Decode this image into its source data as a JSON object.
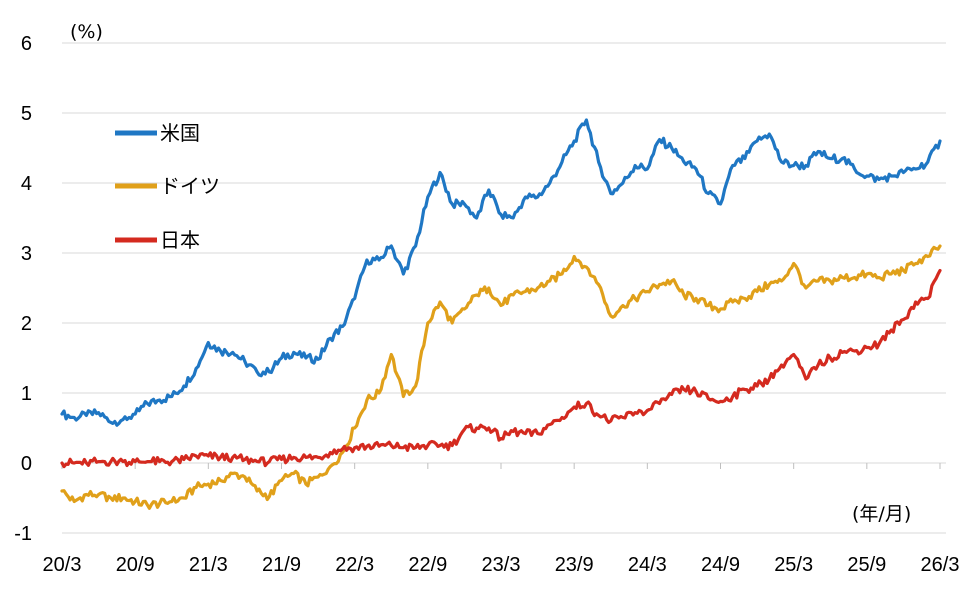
{
  "chart_data": {
    "type": "line",
    "ylabel": "(%)",
    "xlabel": "(年/月)",
    "ylim": [
      -1,
      6
    ],
    "y_ticks": [
      "6",
      "5",
      "4",
      "3",
      "2",
      "1",
      "0",
      "-1"
    ],
    "x_ticks": [
      "20/3",
      "20/9",
      "21/3",
      "21/9",
      "22/3",
      "22/9",
      "23/3",
      "23/9",
      "24/3",
      "24/9",
      "25/3",
      "25/9",
      "26/3"
    ],
    "grid": true,
    "legend_position": "upper-left",
    "series": [
      {
        "name": "米国",
        "color": "#1f77c4",
        "x": [
          "20/3",
          "20/4",
          "20/5",
          "20/6",
          "20/7",
          "20/8",
          "20/9",
          "20/10",
          "20/11",
          "20/12",
          "21/1",
          "21/2",
          "21/3",
          "21/4",
          "21/5",
          "21/6",
          "21/7",
          "21/8",
          "21/9",
          "21/10",
          "21/11",
          "21/12",
          "22/1",
          "22/2",
          "22/3",
          "22/4",
          "22/5",
          "22/6",
          "22/7",
          "22/8",
          "22/9",
          "22/10",
          "22/11",
          "22/12",
          "23/1",
          "23/2",
          "23/3",
          "23/4",
          "23/5",
          "23/6",
          "23/7",
          "23/8",
          "23/9",
          "23/10",
          "23/11",
          "23/12",
          "24/1",
          "24/2",
          "24/3",
          "24/4",
          "24/5",
          "24/6",
          "24/7",
          "24/8",
          "24/9",
          "24/10",
          "24/11",
          "24/12",
          "25/1",
          "25/2",
          "25/3",
          "25/4",
          "25/5",
          "25/6",
          "25/7",
          "25/8",
          "25/9",
          "25/10",
          "25/11",
          "25/12",
          "26/1",
          "26/2",
          "26/3"
        ],
        "values": [
          0.7,
          0.65,
          0.68,
          0.72,
          0.58,
          0.62,
          0.7,
          0.85,
          0.9,
          0.95,
          1.1,
          1.35,
          1.72,
          1.6,
          1.58,
          1.45,
          1.3,
          1.3,
          1.5,
          1.58,
          1.5,
          1.48,
          1.78,
          1.95,
          2.35,
          2.9,
          2.9,
          3.1,
          2.7,
          3.1,
          3.8,
          4.15,
          3.7,
          3.7,
          3.5,
          3.9,
          3.55,
          3.5,
          3.8,
          3.8,
          4.0,
          4.3,
          4.6,
          4.9,
          4.3,
          3.85,
          4.0,
          4.25,
          4.2,
          4.62,
          4.5,
          4.3,
          4.2,
          3.85,
          3.7,
          4.25,
          4.35,
          4.6,
          4.7,
          4.3,
          4.25,
          4.25,
          4.45,
          4.35,
          4.35,
          4.2,
          4.1,
          4.05,
          4.1,
          4.15,
          4.2,
          4.3,
          4.6
        ]
      },
      {
        "name": "ドイツ",
        "color": "#e0a01a",
        "x": [
          "20/3",
          "20/4",
          "20/5",
          "20/6",
          "20/7",
          "20/8",
          "20/9",
          "20/10",
          "20/11",
          "20/12",
          "21/1",
          "21/2",
          "21/3",
          "21/4",
          "21/5",
          "21/6",
          "21/7",
          "21/8",
          "21/9",
          "21/10",
          "21/11",
          "21/12",
          "22/1",
          "22/2",
          "22/3",
          "22/4",
          "22/5",
          "22/6",
          "22/7",
          "22/8",
          "22/9",
          "22/10",
          "22/11",
          "22/12",
          "23/1",
          "23/2",
          "23/3",
          "23/4",
          "23/5",
          "23/6",
          "23/7",
          "23/8",
          "23/9",
          "23/10",
          "23/11",
          "23/12",
          "24/1",
          "24/2",
          "24/3",
          "24/4",
          "24/5",
          "24/6",
          "24/7",
          "24/8",
          "24/9",
          "24/10",
          "24/11",
          "24/12",
          "25/1",
          "25/2",
          "25/3",
          "25/4",
          "25/5",
          "25/6",
          "25/7",
          "25/8",
          "25/9",
          "25/10",
          "25/11",
          "25/12",
          "26/1",
          "26/2",
          "26/3"
        ],
        "values": [
          -0.4,
          -0.55,
          -0.45,
          -0.45,
          -0.5,
          -0.5,
          -0.55,
          -0.6,
          -0.58,
          -0.55,
          -0.5,
          -0.35,
          -0.3,
          -0.25,
          -0.15,
          -0.2,
          -0.4,
          -0.48,
          -0.25,
          -0.15,
          -0.3,
          -0.2,
          -0.05,
          0.15,
          0.5,
          0.9,
          1.0,
          1.55,
          0.95,
          1.1,
          2.0,
          2.3,
          2.0,
          2.2,
          2.4,
          2.5,
          2.25,
          2.4,
          2.45,
          2.5,
          2.6,
          2.7,
          2.95,
          2.8,
          2.55,
          2.1,
          2.25,
          2.35,
          2.45,
          2.55,
          2.6,
          2.4,
          2.35,
          2.25,
          2.2,
          2.3,
          2.35,
          2.45,
          2.55,
          2.6,
          2.85,
          2.5,
          2.6,
          2.6,
          2.65,
          2.65,
          2.7,
          2.65,
          2.7,
          2.75,
          2.85,
          2.95,
          3.1
        ]
      },
      {
        "name": "日本",
        "color": "#d42a1f",
        "x": [
          "20/3",
          "20/4",
          "20/5",
          "20/6",
          "20/7",
          "20/8",
          "20/9",
          "20/10",
          "20/11",
          "20/12",
          "21/1",
          "21/2",
          "21/3",
          "21/4",
          "21/5",
          "21/6",
          "21/7",
          "21/8",
          "21/9",
          "21/10",
          "21/11",
          "21/12",
          "22/1",
          "22/2",
          "22/3",
          "22/4",
          "22/5",
          "22/6",
          "22/7",
          "22/8",
          "22/9",
          "22/10",
          "22/11",
          "22/12",
          "23/1",
          "23/2",
          "23/3",
          "23/4",
          "23/5",
          "23/6",
          "23/7",
          "23/8",
          "23/9",
          "23/10",
          "23/11",
          "23/12",
          "24/1",
          "24/2",
          "24/3",
          "24/4",
          "24/5",
          "24/6",
          "24/7",
          "24/8",
          "24/9",
          "24/10",
          "24/11",
          "24/12",
          "25/1",
          "25/2",
          "25/3",
          "25/4",
          "25/5",
          "25/6",
          "25/7",
          "25/8",
          "25/9",
          "25/10",
          "25/11",
          "25/12",
          "26/1",
          "26/2",
          "26/3"
        ],
        "values": [
          0.0,
          0.0,
          0.0,
          0.02,
          0.02,
          0.02,
          0.02,
          0.02,
          0.02,
          0.02,
          0.05,
          0.1,
          0.1,
          0.08,
          0.08,
          0.05,
          0.02,
          0.02,
          0.05,
          0.08,
          0.08,
          0.08,
          0.15,
          0.2,
          0.22,
          0.24,
          0.24,
          0.25,
          0.22,
          0.22,
          0.25,
          0.25,
          0.25,
          0.48,
          0.5,
          0.5,
          0.35,
          0.45,
          0.42,
          0.42,
          0.55,
          0.65,
          0.8,
          0.85,
          0.68,
          0.6,
          0.65,
          0.72,
          0.75,
          0.85,
          0.98,
          1.05,
          1.02,
          0.92,
          0.88,
          0.95,
          1.05,
          1.1,
          1.2,
          1.4,
          1.55,
          1.2,
          1.4,
          1.5,
          1.58,
          1.6,
          1.65,
          1.7,
          1.9,
          2.05,
          2.3,
          2.35,
          2.75
        ]
      }
    ]
  }
}
